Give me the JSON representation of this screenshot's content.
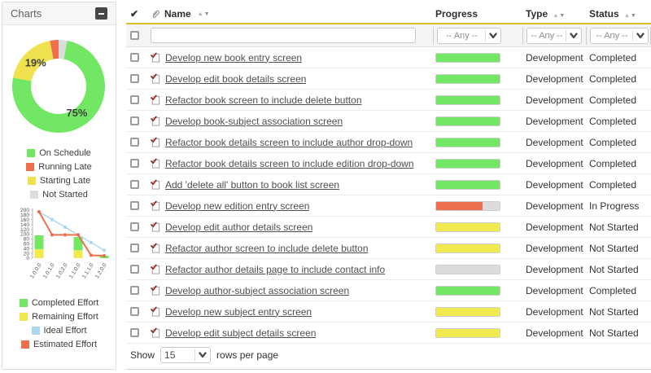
{
  "sidebar": {
    "title": "Charts"
  },
  "colors": {
    "green": "#71e763",
    "yellow": "#f0e94f",
    "red": "#ee6f4d",
    "gray": "#dcdcdc",
    "blue": "#aad8f0",
    "gold_header_line": "#dfbc25"
  },
  "chart_data": [
    {
      "type": "pie",
      "subtype": "donut",
      "slices_clockwise_from_top": [
        {
          "label": "Not Started",
          "value": 3,
          "color": "#dcdcdc",
          "data_label": ""
        },
        {
          "label": "On Schedule",
          "value": 75,
          "color": "#71e763",
          "data_label": "75%"
        },
        {
          "label": "Starting Late",
          "value": 19,
          "color": "#efe24e",
          "data_label": "19%"
        },
        {
          "label": "Running Late",
          "value": 3,
          "color": "#ee6f4d",
          "data_label": ""
        }
      ],
      "legend": [
        "On Schedule",
        "Running Late",
        "Starting Late",
        "Not Started"
      ],
      "legend_position": "bottom"
    },
    {
      "type": "bar",
      "subtype": "stacked-bars-with-lines",
      "categories": [
        "1.0.0.0",
        "1.0.1.0",
        "1.0.2.0",
        "1.1.0.0",
        "1.1.1.0",
        "1.2.0.0"
      ],
      "ylim": [
        0,
        200
      ],
      "ytick_step": 20,
      "series": [
        {
          "name": "Remaining Effort",
          "kind": "bar",
          "color": "#f0e94f",
          "values": [
            38,
            0,
            0,
            33,
            0,
            0
          ]
        },
        {
          "name": "Completed Effort",
          "kind": "bar",
          "color": "#71e763",
          "values": [
            57,
            0,
            0,
            55,
            0,
            10
          ]
        },
        {
          "name": "Ideal Effort",
          "kind": "line",
          "color": "#aad8f0",
          "values": [
            193,
            161,
            129,
            97,
            65,
            33
          ]
        },
        {
          "name": "Estimated Effort",
          "kind": "line",
          "color": "#ee6f4d",
          "values": [
            193,
            97,
            97,
            97,
            12,
            10
          ]
        }
      ],
      "legend": [
        "Completed Effort",
        "Remaining Effort",
        "Ideal Effort",
        "Estimated Effort"
      ],
      "legend_position": "bottom"
    }
  ],
  "table": {
    "header_icons": {
      "select_all_glyph": "✔",
      "sort_up_glyph": "▲",
      "sort_down_glyph": "▼"
    },
    "columns": {
      "name": "Name",
      "progress": "Progress",
      "type": "Type",
      "status": "Status"
    },
    "filter": {
      "name_value": "",
      "any_label": "-- Any --"
    },
    "rows": [
      {
        "name": "Develop new book entry screen",
        "progress": {
          "color": "green",
          "pct": 100
        },
        "type": "Development",
        "status": "Completed"
      },
      {
        "name": "Develop edit book details screen",
        "progress": {
          "color": "green",
          "pct": 100
        },
        "type": "Development",
        "status": "Completed"
      },
      {
        "name": "Refactor book screen to include delete button",
        "progress": {
          "color": "green",
          "pct": 100
        },
        "type": "Development",
        "status": "Completed"
      },
      {
        "name": "Develop book-subject association screen",
        "progress": {
          "color": "green",
          "pct": 100
        },
        "type": "Development",
        "status": "Completed"
      },
      {
        "name": "Refactor book details screen to include author drop-down",
        "progress": {
          "color": "green",
          "pct": 100
        },
        "type": "Development",
        "status": "Completed"
      },
      {
        "name": "Refactor book details screen to include edition drop-down",
        "progress": {
          "color": "green",
          "pct": 100
        },
        "type": "Development",
        "status": "Completed"
      },
      {
        "name": "Add 'delete all' button to book list screen",
        "progress": {
          "color": "green",
          "pct": 100
        },
        "type": "Development",
        "status": "Completed"
      },
      {
        "name": "Develop new edition entry screen",
        "progress": {
          "color": "red",
          "pct": 73
        },
        "type": "Development",
        "status": "In Progress"
      },
      {
        "name": "Develop edit author details screen",
        "progress": {
          "color": "yellow",
          "pct": 100
        },
        "type": "Development",
        "status": "Not Started"
      },
      {
        "name": "Refactor author screen to include delete button",
        "progress": {
          "color": "yellow",
          "pct": 100
        },
        "type": "Development",
        "status": "Not Started"
      },
      {
        "name": "Refactor author details page to include contact info",
        "progress": {
          "color": "gray",
          "pct": 100
        },
        "type": "Development",
        "status": "Not Started"
      },
      {
        "name": "Develop author-subject association screen",
        "progress": {
          "color": "green",
          "pct": 100
        },
        "type": "Development",
        "status": "Completed"
      },
      {
        "name": "Develop new subject entry screen",
        "progress": {
          "color": "yellow",
          "pct": 100
        },
        "type": "Development",
        "status": "Not Started"
      },
      {
        "name": "Develop edit subject details screen",
        "progress": {
          "color": "yellow",
          "pct": 100
        },
        "type": "Development",
        "status": "Not Started"
      }
    ],
    "footer": {
      "show_label": "Show",
      "page_size": "15",
      "rows_label": "rows per page"
    }
  }
}
